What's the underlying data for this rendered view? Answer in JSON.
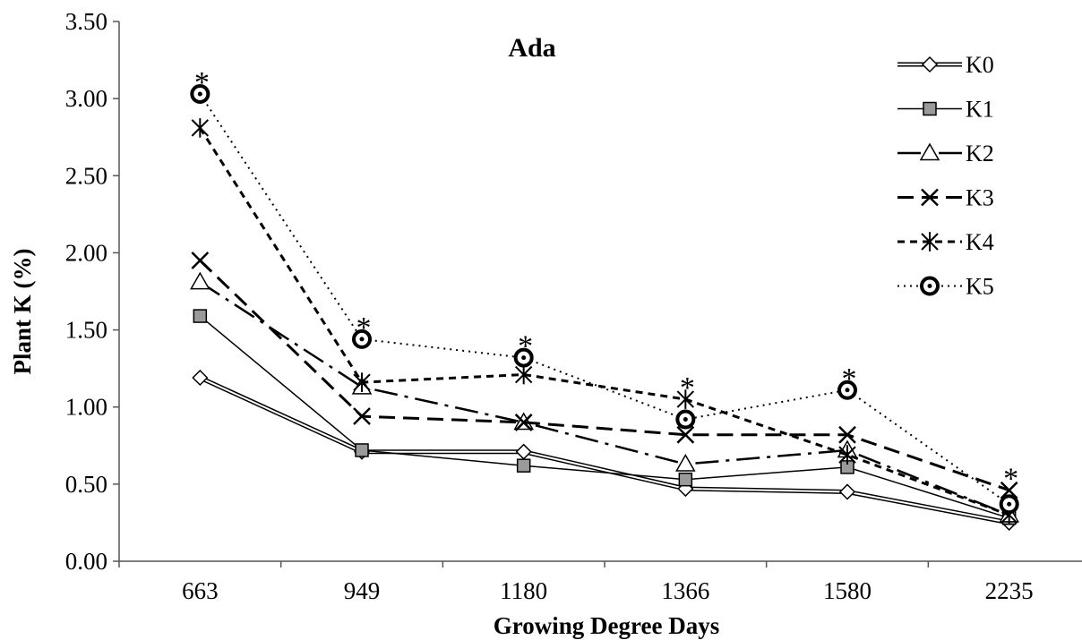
{
  "chart_data": {
    "type": "line",
    "title": "Ada",
    "xlabel": "Growing Degree Days",
    "ylabel": "Plant K (%)",
    "categories": [
      "663",
      "949",
      "1180",
      "1366",
      "1580",
      "2235"
    ],
    "y_ticks": [
      "0.00",
      "0.50",
      "1.00",
      "1.50",
      "2.00",
      "2.50",
      "3.00",
      "3.50"
    ],
    "ylim": [
      0,
      3.5
    ],
    "grid": false,
    "legend_position": "top-right",
    "series": [
      {
        "name": "K0",
        "values": [
          1.19,
          0.71,
          0.71,
          0.47,
          0.45,
          0.25
        ]
      },
      {
        "name": "K1",
        "values": [
          1.59,
          0.72,
          0.62,
          0.53,
          0.61,
          0.28
        ]
      },
      {
        "name": "K2",
        "values": [
          1.81,
          1.13,
          0.9,
          0.63,
          0.72,
          0.3
        ]
      },
      {
        "name": "K3",
        "values": [
          1.95,
          0.94,
          0.9,
          0.82,
          0.82,
          0.46
        ]
      },
      {
        "name": "K4",
        "values": [
          2.81,
          1.16,
          1.21,
          1.05,
          0.69,
          0.3
        ]
      },
      {
        "name": "K5",
        "values": [
          3.03,
          1.44,
          1.32,
          0.92,
          1.11,
          0.37
        ]
      }
    ],
    "annotations": [
      {
        "text": "*",
        "category": "663",
        "value": 3.03
      },
      {
        "text": "*",
        "category": "949",
        "value": 1.44
      },
      {
        "text": "*",
        "category": "1180",
        "value": 1.32
      },
      {
        "text": "*",
        "category": "1366",
        "value": 1.05
      },
      {
        "text": "*",
        "category": "1580",
        "value": 1.11
      },
      {
        "text": "*",
        "category": "2235",
        "value": 0.46
      }
    ]
  }
}
